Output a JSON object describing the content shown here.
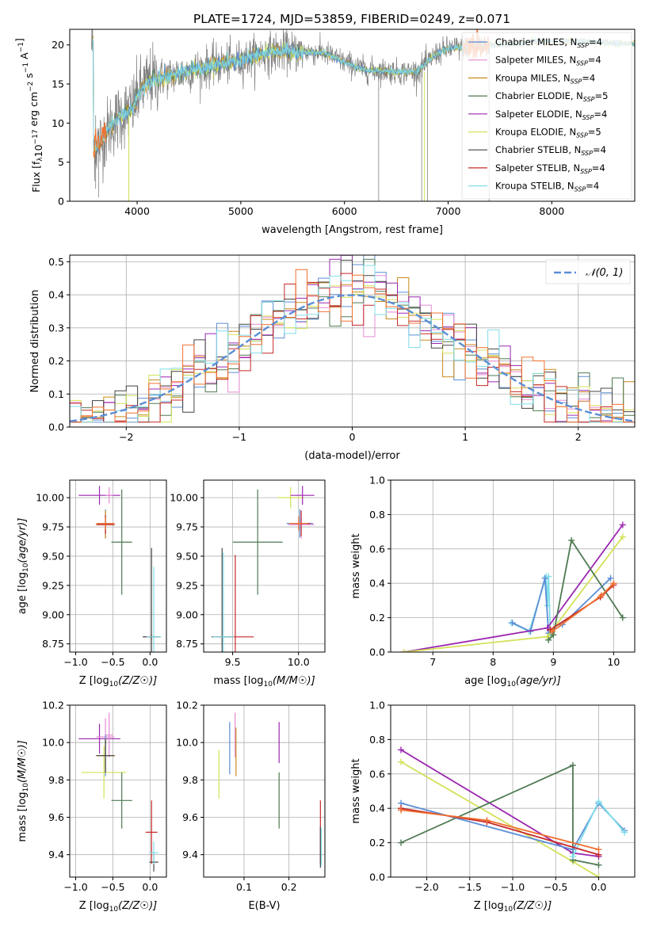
{
  "title": "PLATE=1724, MJD=53859, FIBERID=0249, z=0.071",
  "colors": {
    "chabrier_miles": "#5b8ed6",
    "salpeter_miles": "#e58bd3",
    "kroupa_miles": "#c98a1b",
    "chabrier_elodie": "#4e7a52",
    "salpeter_elodie": "#9b27b0",
    "kroupa_elodie": "#d4e157",
    "chabrier_stelib": "#444444",
    "salpeter_stelib": "#c62828",
    "kroupa_stelib": "#80deea",
    "orange": "#f07030",
    "gray": "#808080",
    "normal": "#5b8ed6"
  },
  "chart_data": [
    {
      "id": "spectrum",
      "type": "line",
      "xlabel": "wavelength [Angstrom, rest frame]",
      "ylabel": "Flux [f",
      "xlim": [
        3350,
        8800
      ],
      "ylim": [
        0,
        22
      ],
      "xticks": [
        "4000",
        "5000",
        "6000",
        "7000",
        "8000"
      ],
      "yticks": [
        "0",
        "5",
        "10",
        "15",
        "20"
      ],
      "legend_position": "top-right",
      "legend": [
        {
          "label": "Chabrier MILES, N",
          "nssp": "4",
          "color_key": "chabrier_miles"
        },
        {
          "label": "Salpeter MILES, N",
          "nssp": "4",
          "color_key": "salpeter_miles"
        },
        {
          "label": "Kroupa MILES, N",
          "nssp": "4",
          "color_key": "kroupa_miles"
        },
        {
          "label": "Chabrier ELODIE, N",
          "nssp": "5",
          "color_key": "chabrier_elodie"
        },
        {
          "label": "Salpeter ELODIE, N",
          "nssp": "4",
          "color_key": "salpeter_elodie"
        },
        {
          "label": "Kroupa ELODIE, N",
          "nssp": "5",
          "color_key": "kroupa_elodie"
        },
        {
          "label": "Chabrier STELIB, N",
          "nssp": "4",
          "color_key": "chabrier_stelib"
        },
        {
          "label": "Salpeter STELIB, N",
          "nssp": "4",
          "color_key": "salpeter_stelib"
        },
        {
          "label": "Kroupa STELIB, N",
          "nssp": "4",
          "color_key": "kroupa_stelib"
        }
      ],
      "continuum": [
        [
          3580,
          7.0
        ],
        [
          3650,
          7.6
        ],
        [
          3750,
          9.8
        ],
        [
          3850,
          11.0
        ],
        [
          3950,
          11.8
        ],
        [
          4000,
          13.4
        ],
        [
          4050,
          14.5
        ],
        [
          4150,
          15.6
        ],
        [
          4300,
          16.0
        ],
        [
          4500,
          16.6
        ],
        [
          4700,
          17.3
        ],
        [
          4860,
          17.6
        ],
        [
          5000,
          18.0
        ],
        [
          5200,
          18.8
        ],
        [
          5400,
          19.2
        ],
        [
          5600,
          19.1
        ],
        [
          5800,
          19.0
        ],
        [
          5900,
          18.4
        ],
        [
          6000,
          17.8
        ],
        [
          6100,
          17.3
        ],
        [
          6200,
          16.8
        ],
        [
          6400,
          16.7
        ],
        [
          6550,
          16.5
        ],
        [
          6700,
          16.6
        ],
        [
          6800,
          17.8
        ],
        [
          6900,
          19.0
        ],
        [
          7000,
          19.5
        ],
        [
          7200,
          19.8
        ],
        [
          7400,
          20.0
        ],
        [
          7600,
          20.1
        ],
        [
          7800,
          20.4
        ],
        [
          8000,
          20.5
        ],
        [
          8200,
          20.5
        ],
        [
          8400,
          20.4
        ],
        [
          8600,
          20.2
        ],
        [
          8800,
          20.1
        ]
      ],
      "gray_data_end": 7400,
      "noise_spikes": [
        {
          "x": 3600,
          "ymin": 1.6,
          "ymax": 11.0
        },
        {
          "x": 3628,
          "ymin": 0.5,
          "ymax": 9.0
        },
        {
          "x": 3920,
          "ymin": 0.0,
          "ymax": 12.5
        },
        {
          "x": 6330,
          "ymin": 0.0,
          "ymax": 16.8
        },
        {
          "x": 6745,
          "ymin": 0.0,
          "ymax": 16.6
        },
        {
          "x": 6800,
          "ymin": 0.0,
          "ymax": 17.5
        },
        {
          "x": 7395,
          "ymin": 0.0,
          "ymax": 20.5
        }
      ]
    },
    {
      "id": "residuals",
      "type": "histogram",
      "xlabel": "(data-model)/error",
      "ylabel": "Normed distribution",
      "xlim": [
        -2.5,
        2.5
      ],
      "ylim": [
        0,
        0.52
      ],
      "xticks": [
        "−2",
        "−1",
        "0",
        "1",
        "2"
      ],
      "yticks": [
        "0.0",
        "0.1",
        "0.2",
        "0.3",
        "0.4",
        "0.5"
      ],
      "legend_label": "𝒩(0, 1)",
      "bin_width": 0.1
    },
    {
      "id": "age_vs_z",
      "type": "errorbar",
      "xlabel": "Z [log",
      "ylabel": "age  [log",
      "xlim": [
        -1.08,
        0.22
      ],
      "ylim": [
        8.68,
        10.15
      ],
      "xticks": [
        "−1.0",
        "−0.5",
        "0.0"
      ],
      "yticks": [
        "8.75",
        "9.00",
        "9.25",
        "9.50",
        "9.75",
        "10.00"
      ],
      "points": [
        {
          "x": -0.68,
          "xerr": 0.28,
          "y": 10.02,
          "yerr": 0.08,
          "color_key": "salpeter_elodie"
        },
        {
          "x": -0.55,
          "xerr": 0.05,
          "y": 10.02,
          "yerr": 0.07,
          "color_key": "salpeter_miles"
        },
        {
          "x": -0.6,
          "xerr": 0.1,
          "y": 9.78,
          "yerr": 0.12,
          "color_key": "chabrier_miles"
        },
        {
          "x": -0.6,
          "xerr": 0.13,
          "y": 9.77,
          "yerr": 0.12,
          "color_key": "kroupa_miles"
        },
        {
          "x": -0.6,
          "xerr": 0.12,
          "y": 9.77,
          "yerr": 0.08,
          "color_key": "salpeter_stelib"
        },
        {
          "x": -0.6,
          "xerr": 0.12,
          "y": 9.78,
          "yerr": 0.05,
          "color_key": "orange"
        },
        {
          "x": -0.38,
          "xerr": 0.14,
          "y": 9.62,
          "yerr": 0.45,
          "color_key": "chabrier_elodie"
        },
        {
          "x": 0.02,
          "xerr": 0.1,
          "y": 8.81,
          "yerr": 0.02,
          "color_key": "salpeter_stelib"
        },
        {
          "x": 0.02,
          "xerr": 0.12,
          "y": 8.81,
          "yerr": 0.76,
          "color_key": "chabrier_stelib"
        },
        {
          "x": 0.05,
          "xerr": 0.1,
          "y": 8.81,
          "yerr": 0.6,
          "color_key": "kroupa_stelib"
        }
      ]
    },
    {
      "id": "age_vs_mass",
      "type": "errorbar",
      "xlabel": "mass [log",
      "ylabel": "",
      "xlim": [
        9.28,
        10.2
      ],
      "ylim": [
        8.68,
        10.15
      ],
      "xticks": [
        "9.5",
        "10.0"
      ],
      "yticks": [
        "8.75",
        "9.00",
        "9.25",
        "9.50",
        "9.75",
        "10.00"
      ],
      "points": [
        {
          "x": 9.94,
          "xerr": 0.1,
          "y": 10.0,
          "yerr": 0.09,
          "color_key": "kroupa_elodie"
        },
        {
          "x": 10.03,
          "xerr": 0.09,
          "y": 10.02,
          "yerr": 0.08,
          "color_key": "salpeter_elodie"
        },
        {
          "x": 10.01,
          "xerr": 0.1,
          "y": 9.78,
          "yerr": 0.12,
          "color_key": "chabrier_miles"
        },
        {
          "x": 10.02,
          "xerr": 0.1,
          "y": 9.77,
          "yerr": 0.12,
          "color_key": "salpeter_miles"
        },
        {
          "x": 10.02,
          "xerr": 0.07,
          "y": 9.78,
          "yerr": 0.11,
          "color_key": "salpeter_stelib"
        },
        {
          "x": 10.0,
          "xerr": 0.07,
          "y": 9.78,
          "yerr": 0.06,
          "color_key": "orange"
        },
        {
          "x": 9.69,
          "xerr": 0.19,
          "y": 9.62,
          "yerr": 0.45,
          "color_key": "chabrier_elodie"
        },
        {
          "x": 9.52,
          "xerr": 0.14,
          "y": 8.81,
          "yerr": 0.7,
          "color_key": "salpeter_stelib"
        },
        {
          "x": 9.42,
          "xerr": 0.08,
          "y": 8.81,
          "yerr": 0.76,
          "color_key": "chabrier_stelib"
        },
        {
          "x": 9.43,
          "xerr": 0.08,
          "y": 8.81,
          "yerr": 0.72,
          "color_key": "kroupa_stelib"
        }
      ]
    },
    {
      "id": "weight_vs_age",
      "type": "line",
      "xlabel": "age  [log",
      "ylabel": "mass weight",
      "xlim": [
        6.3,
        10.35
      ],
      "ylim": [
        0,
        1.0
      ],
      "xticks": [
        "7",
        "8",
        "9",
        "10"
      ],
      "yticks": [
        "0.0",
        "0.2",
        "0.4",
        "0.6",
        "0.8",
        "1.0"
      ],
      "series": [
        {
          "color_key": "kroupa_stelib",
          "points": [
            [
              8.3,
              0.17
            ],
            [
              8.6,
              0.12
            ],
            [
              8.88,
              0.44
            ],
            [
              8.9,
              0.27
            ],
            [
              8.92,
              0.44
            ],
            [
              8.95,
              0.1
            ]
          ]
        },
        {
          "color_key": "chabrier_miles",
          "points": [
            [
              8.32,
              0.17
            ],
            [
              8.62,
              0.12
            ],
            [
              8.86,
              0.43
            ],
            [
              8.92,
              0.11
            ],
            [
              9.15,
              0.16
            ],
            [
              9.95,
              0.43
            ]
          ]
        },
        {
          "color_key": "salpeter_elodie",
          "points": [
            [
              6.52,
              0.0
            ],
            [
              8.9,
              0.14
            ],
            [
              10.15,
              0.74
            ]
          ]
        },
        {
          "color_key": "kroupa_elodie",
          "points": [
            [
              6.52,
              0.0
            ],
            [
              8.9,
              0.09
            ],
            [
              10.15,
              0.67
            ]
          ]
        },
        {
          "color_key": "chabrier_elodie",
          "points": [
            [
              8.92,
              0.07
            ],
            [
              9.0,
              0.1
            ],
            [
              9.3,
              0.65
            ],
            [
              10.15,
              0.2
            ]
          ]
        },
        {
          "color_key": "salpeter_stelib",
          "points": [
            [
              8.95,
              0.13
            ],
            [
              9.78,
              0.32
            ],
            [
              10.0,
              0.39
            ]
          ]
        },
        {
          "color_key": "orange",
          "points": [
            [
              8.98,
              0.12
            ],
            [
              9.8,
              0.33
            ],
            [
              10.0,
              0.4
            ]
          ]
        }
      ]
    },
    {
      "id": "mass_vs_z",
      "type": "errorbar",
      "xlabel": "Z [log",
      "ylabel": "mass [log",
      "xlim": [
        -1.08,
        0.22
      ],
      "ylim": [
        9.28,
        10.2
      ],
      "xticks": [
        "−1.0",
        "−0.5",
        "0.0"
      ],
      "yticks": [
        "9.4",
        "9.6",
        "9.8",
        "10.0",
        "10.2"
      ],
      "points": [
        {
          "x": -0.68,
          "xerr": 0.28,
          "y": 10.02,
          "yerr": 0.08,
          "color_key": "salpeter_elodie"
        },
        {
          "x": -0.55,
          "xerr": 0.05,
          "y": 10.04,
          "yerr": 0.12,
          "color_key": "salpeter_miles"
        },
        {
          "x": -0.6,
          "xerr": 0.12,
          "y": 10.03,
          "yerr": 0.1,
          "color_key": "salpeter_miles"
        },
        {
          "x": -0.62,
          "xerr": 0.3,
          "y": 9.84,
          "yerr": 0.14,
          "color_key": "kroupa_elodie"
        },
        {
          "x": -0.6,
          "xerr": 0.12,
          "y": 9.93,
          "yerr": 0.11,
          "color_key": "chabrier_miles"
        },
        {
          "x": -0.6,
          "xerr": 0.13,
          "y": 9.93,
          "yerr": 0.09,
          "color_key": "kroupa_miles"
        },
        {
          "x": -0.6,
          "xerr": 0.12,
          "y": 9.93,
          "yerr": 0.09,
          "color_key": "chabrier_stelib"
        },
        {
          "x": -0.38,
          "xerr": 0.14,
          "y": 9.69,
          "yerr": 0.15,
          "color_key": "chabrier_elodie"
        },
        {
          "x": 0.02,
          "xerr": 0.08,
          "y": 9.52,
          "yerr": 0.17,
          "color_key": "salpeter_stelib"
        },
        {
          "x": 0.05,
          "xerr": 0.06,
          "y": 9.36,
          "yerr": 0.05,
          "color_key": "chabrier_stelib"
        },
        {
          "x": 0.05,
          "xerr": 0.06,
          "y": 9.41,
          "yerr": 0.06,
          "color_key": "kroupa_stelib"
        }
      ]
    },
    {
      "id": "mass_vs_ebv",
      "type": "errorbar",
      "xlabel": "E(B-V)",
      "ylabel": "",
      "xlim": [
        0.01,
        0.28
      ],
      "ylim": [
        9.28,
        10.2
      ],
      "xticks": [
        "0.1",
        "0.2"
      ],
      "yticks": [
        "9.4",
        "9.6",
        "9.8",
        "10.0",
        "10.2"
      ],
      "points": [
        {
          "x": 0.044,
          "xerr": 0.0,
          "y": 9.83,
          "yerr": 0.13,
          "color_key": "kroupa_elodie"
        },
        {
          "x": 0.068,
          "xerr": 0.0,
          "y": 9.97,
          "yerr": 0.14,
          "color_key": "chabrier_miles"
        },
        {
          "x": 0.08,
          "xerr": 0.0,
          "y": 10.04,
          "yerr": 0.12,
          "color_key": "salpeter_miles"
        },
        {
          "x": 0.082,
          "xerr": 0.0,
          "y": 9.95,
          "yerr": 0.13,
          "color_key": "kroupa_miles"
        },
        {
          "x": 0.178,
          "xerr": 0.0,
          "y": 10.0,
          "yerr": 0.11,
          "color_key": "salpeter_elodie"
        },
        {
          "x": 0.178,
          "xerr": 0.0,
          "y": 9.69,
          "yerr": 0.15,
          "color_key": "chabrier_elodie"
        },
        {
          "x": 0.27,
          "xerr": 0.0,
          "y": 9.52,
          "yerr": 0.17,
          "color_key": "salpeter_stelib"
        },
        {
          "x": 0.27,
          "xerr": 0.0,
          "y": 9.44,
          "yerr": 0.11,
          "color_key": "chabrier_stelib"
        },
        {
          "x": 0.272,
          "xerr": 0.0,
          "y": 9.44,
          "yerr": 0.1,
          "color_key": "kroupa_stelib"
        }
      ]
    },
    {
      "id": "weight_vs_z",
      "type": "line",
      "xlabel": "Z [log",
      "ylabel": "mass weight",
      "xlim": [
        -2.42,
        0.42
      ],
      "ylim": [
        0,
        1.0
      ],
      "xticks": [
        "−2.0",
        "−1.5",
        "−1.0",
        "−0.5",
        "0.0"
      ],
      "yticks": [
        "0.0",
        "0.2",
        "0.4",
        "0.6",
        "0.8",
        "1.0"
      ],
      "series": [
        {
          "color_key": "salpeter_elodie",
          "points": [
            [
              -2.3,
              0.74
            ],
            [
              -0.3,
              0.14
            ],
            [
              0.0,
              0.12
            ]
          ]
        },
        {
          "color_key": "kroupa_elodie",
          "points": [
            [
              -2.3,
              0.67
            ],
            [
              -0.3,
              0.09
            ],
            [
              0.0,
              0.0
            ]
          ]
        },
        {
          "color_key": "chabrier_elodie",
          "points": [
            [
              -2.3,
              0.2
            ],
            [
              -0.3,
              0.65
            ],
            [
              -0.3,
              0.1
            ],
            [
              0.0,
              0.07
            ]
          ]
        },
        {
          "color_key": "chabrier_miles",
          "points": [
            [
              -2.3,
              0.43
            ],
            [
              -0.3,
              0.16
            ],
            [
              0.0,
              0.43
            ],
            [
              0.3,
              0.27
            ]
          ]
        },
        {
          "color_key": "kroupa_stelib",
          "points": [
            [
              -0.3,
              0.12
            ],
            [
              0.0,
              0.44
            ],
            [
              0.3,
              0.26
            ]
          ]
        },
        {
          "color_key": "salpeter_stelib",
          "points": [
            [
              -2.3,
              0.4
            ],
            [
              -1.3,
              0.32
            ],
            [
              0.0,
              0.13
            ]
          ]
        },
        {
          "color_key": "orange",
          "points": [
            [
              -2.3,
              0.39
            ],
            [
              -1.3,
              0.33
            ],
            [
              0.0,
              0.16
            ]
          ]
        }
      ]
    }
  ]
}
